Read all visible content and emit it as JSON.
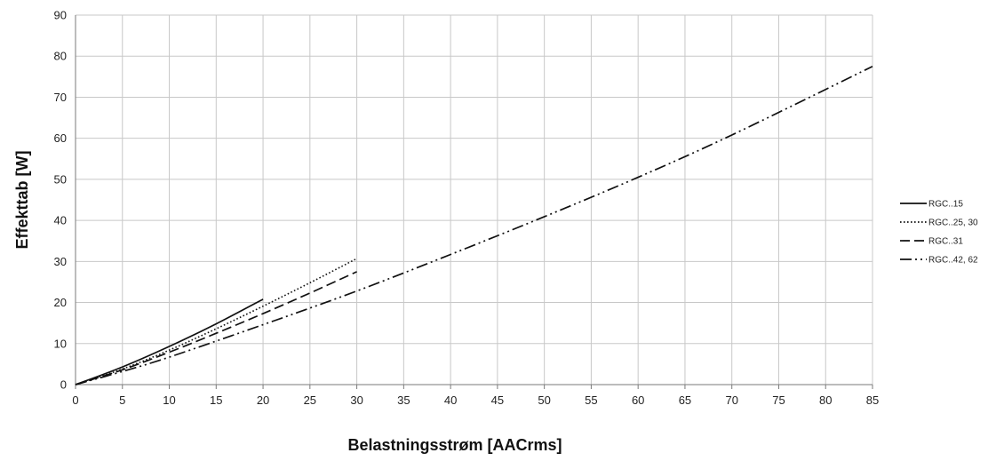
{
  "chart_data": {
    "type": "line",
    "title": "",
    "xlabel": "Belastningsstrøm [AACrms]",
    "ylabel": "Effekttab [W]",
    "xlim": [
      0,
      85
    ],
    "ylim": [
      0,
      90
    ],
    "x_ticks": [
      0,
      5,
      10,
      15,
      20,
      25,
      30,
      35,
      40,
      45,
      50,
      55,
      60,
      65,
      70,
      75,
      80,
      85
    ],
    "y_ticks": [
      0,
      10,
      20,
      30,
      40,
      50,
      60,
      70,
      80,
      90
    ],
    "grid": true,
    "legend_position": "right",
    "series": [
      {
        "name": "RGC..15",
        "dash": "solid",
        "x": [
          0,
          5,
          10,
          15,
          20
        ],
        "y": [
          0,
          4.3,
          9.3,
          14.8,
          20.8
        ]
      },
      {
        "name": "RGC..25, 30",
        "dash": "dotted",
        "x": [
          0,
          5,
          10,
          15,
          20,
          25,
          30
        ],
        "y": [
          0,
          3.8,
          8.4,
          13.6,
          19.1,
          24.8,
          30.7
        ]
      },
      {
        "name": "RGC..31",
        "dash": "dashed",
        "x": [
          0,
          5,
          10,
          15,
          20,
          25,
          30
        ],
        "y": [
          0,
          3.6,
          7.9,
          12.5,
          17.3,
          22.3,
          27.5
        ]
      },
      {
        "name": "RGC..42, 62",
        "dash": "dash-dot-dot",
        "x": [
          0,
          5,
          10,
          20,
          30,
          40,
          50,
          60,
          70,
          85
        ],
        "y": [
          0,
          3.2,
          6.7,
          14.6,
          22.8,
          31.7,
          40.9,
          50.5,
          60.8,
          77.5
        ]
      }
    ]
  }
}
